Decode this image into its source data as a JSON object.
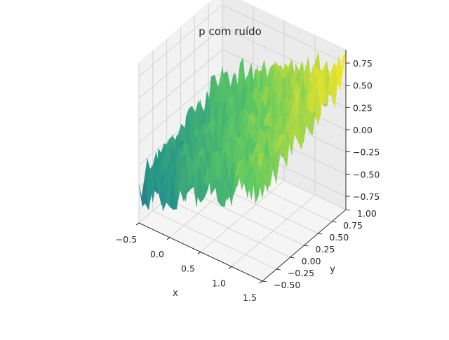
{
  "chart_data": {
    "type": "surface3d",
    "title": "p com ruído",
    "xlabel": "x",
    "ylabel": "y",
    "zlabel": "",
    "xlim": [
      -0.5,
      1.5
    ],
    "ylim": [
      -0.5,
      1.0
    ],
    "zlim": [
      -0.9,
      0.9
    ],
    "x_ticks": [
      "−0.5",
      "0.0",
      "0.5",
      "1.0",
      "1.5"
    ],
    "y_ticks": [
      "−0.50",
      "−0.25",
      "0.00",
      "0.25",
      "0.50",
      "0.75",
      "1.00"
    ],
    "z_ticks": [
      "−0.75",
      "−0.50",
      "−0.25",
      "0.00",
      "0.25",
      "0.50",
      "0.75"
    ],
    "x_tick_values": [
      -0.5,
      0.0,
      0.5,
      1.0,
      1.5
    ],
    "y_tick_values": [
      -0.5,
      -0.25,
      0.0,
      0.25,
      0.5,
      0.75,
      1.0
    ],
    "z_tick_values": [
      -0.75,
      -0.5,
      -0.25,
      0.0,
      0.25,
      0.5,
      0.75
    ],
    "surface": {
      "x_range": [
        -0.5,
        1.5
      ],
      "y_range": [
        -0.5,
        1.0
      ],
      "trend": "values increase with x and y from about -0.6 to about 0.6",
      "noise_amplitude": 0.25,
      "colormap": "viridis"
    },
    "grid": true
  }
}
